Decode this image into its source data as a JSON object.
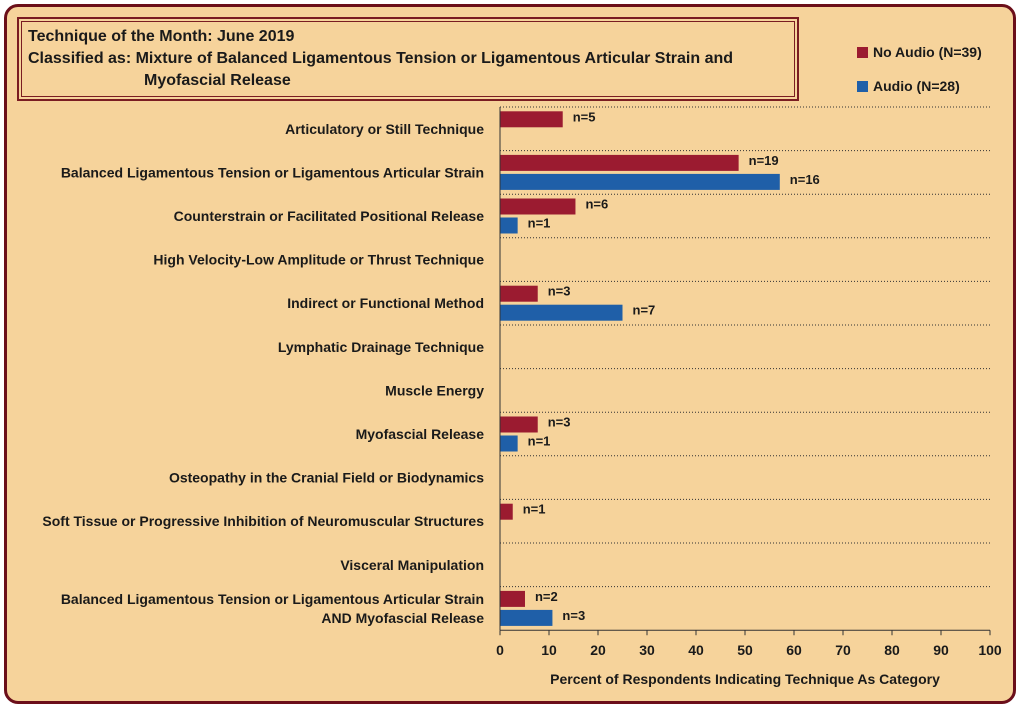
{
  "title": {
    "line1": "Technique of the Month: June 2019",
    "line2": "Classified as: Mixture of Balanced Ligamentous Tension or Ligamentous Articular Strain and",
    "line3": "Myofascial Release"
  },
  "colors": {
    "no_audio": "#9b1b30",
    "audio": "#1f5fa8",
    "gridline": "#333333",
    "frame_bg": "#f6d39b",
    "frame_border": "#6b0f1a"
  },
  "chart_data": {
    "type": "bar",
    "orientation": "horizontal",
    "xlabel": "Percent of Respondents Indicating Technique As Category",
    "xlim": [
      0,
      100
    ],
    "xticks": [
      0,
      10,
      20,
      30,
      40,
      50,
      60,
      70,
      80,
      90,
      100
    ],
    "grid": "horizontal dotted separators between categories",
    "legend_position": "top-right",
    "categories": [
      [
        "Articulatory or Still Technique"
      ],
      [
        "Balanced Ligamentous Tension or Ligamentous Articular Strain"
      ],
      [
        "Counterstrain or Facilitated Positional Release"
      ],
      [
        "High Velocity-Low Amplitude or Thrust Technique"
      ],
      [
        "Indirect or Functional Method"
      ],
      [
        "Lymphatic Drainage Technique"
      ],
      [
        "Muscle Energy"
      ],
      [
        "Myofascial Release"
      ],
      [
        "Osteopathy in the Cranial Field or Biodynamics"
      ],
      [
        "Soft Tissue or Progressive Inhibition of Neuromuscular Structures"
      ],
      [
        "Visceral Manipulation"
      ],
      [
        "Balanced Ligamentous Tension or Ligamentous Articular Strain",
        "AND Myofascial Release"
      ]
    ],
    "series": [
      {
        "name": "No Audio (N=39)",
        "values": [
          12.8,
          48.7,
          15.4,
          0,
          7.7,
          0,
          0,
          7.7,
          0,
          2.6,
          0,
          5.1
        ],
        "labels": [
          "n=5",
          "n=19",
          "n=6",
          "",
          "n=3",
          "",
          "",
          "n=3",
          "",
          "n=1",
          "",
          "n=2"
        ]
      },
      {
        "name": "Audio (N=28)",
        "values": [
          0,
          57.1,
          3.6,
          0,
          25.0,
          0,
          0,
          3.6,
          0,
          0,
          0,
          10.7
        ],
        "labels": [
          "",
          "n=16",
          "n=1",
          "",
          "n=7",
          "",
          "",
          "n=1",
          "",
          "",
          "",
          "n=3"
        ]
      }
    ]
  }
}
